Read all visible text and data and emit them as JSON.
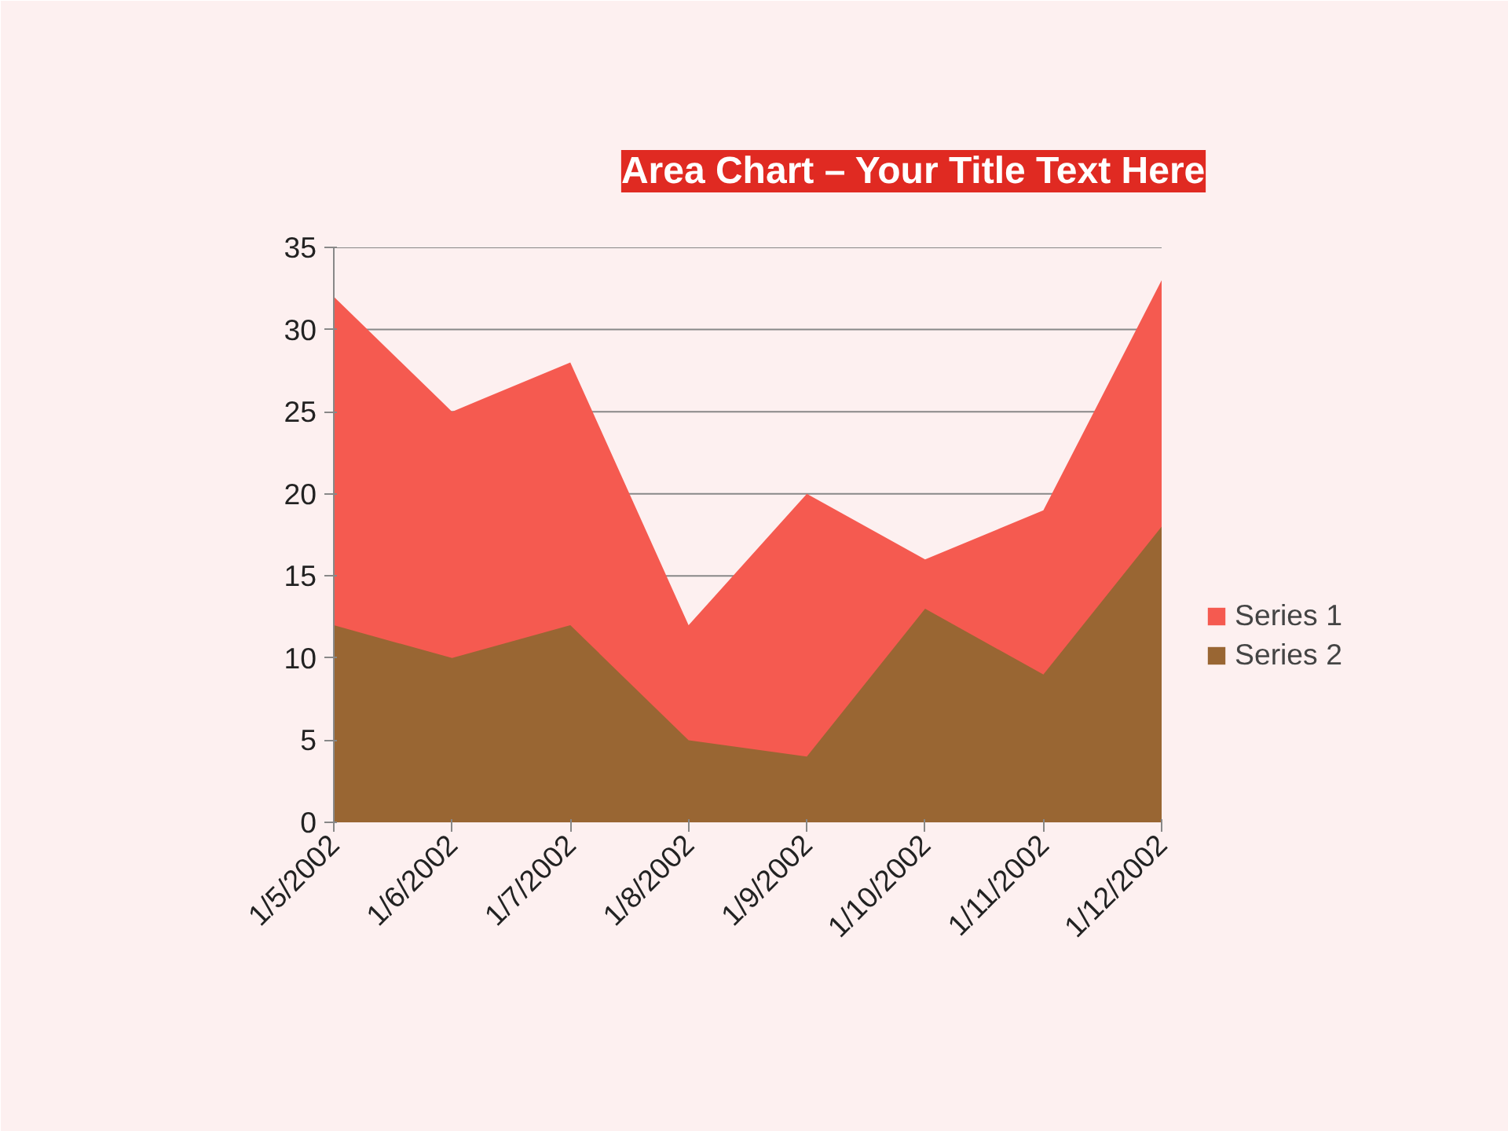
{
  "chart_data": {
    "type": "area",
    "title": "Area Chart – Your Title Text Here",
    "categories": [
      "1/5/2002",
      "1/6/2002",
      "1/7/2002",
      "1/8/2002",
      "1/9/2002",
      "1/10/2002",
      "1/11/2002",
      "1/12/2002"
    ],
    "series": [
      {
        "name": "Series 1",
        "color": "#f55a50",
        "values": [
          32,
          25,
          28,
          12,
          20,
          16,
          19,
          33
        ]
      },
      {
        "name": "Series 2",
        "color": "#996633",
        "values": [
          12,
          10,
          12,
          5,
          4,
          13,
          9,
          18
        ]
      }
    ],
    "ylim": [
      0,
      35
    ],
    "yticks": [
      0,
      5,
      10,
      15,
      20,
      25,
      30,
      35
    ],
    "grid": "y",
    "legend": "right"
  }
}
